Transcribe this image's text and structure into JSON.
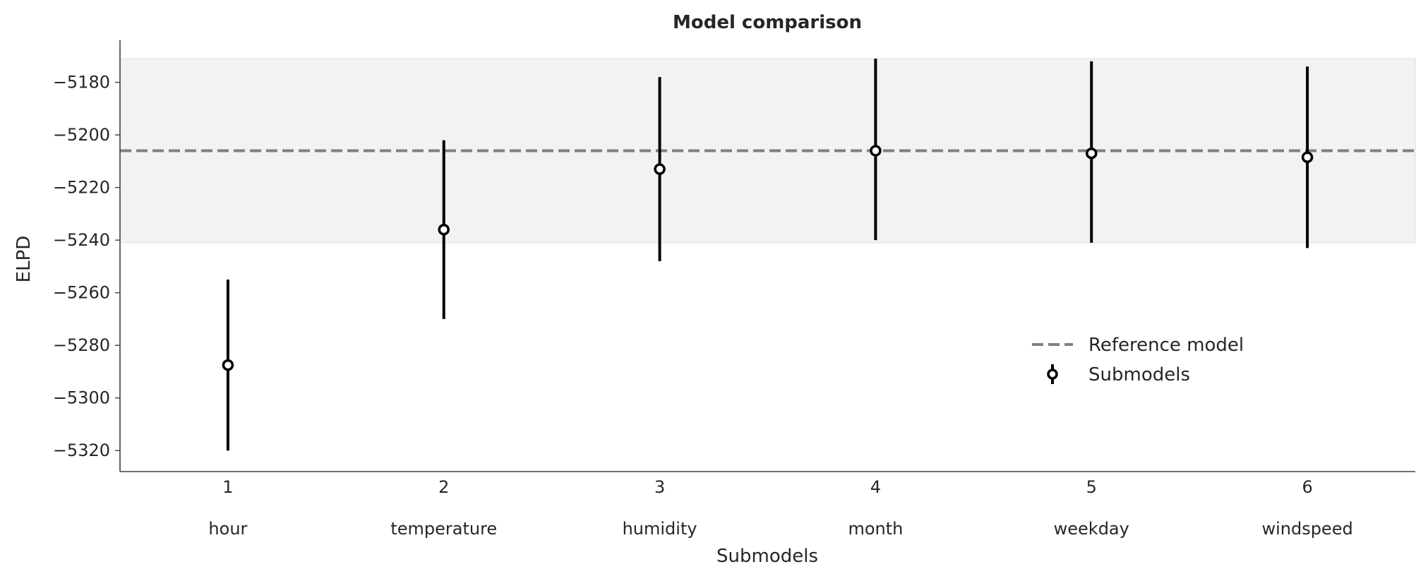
{
  "chart_data": {
    "type": "scatter",
    "title": "Model comparison",
    "xlabel": "Submodels",
    "ylabel": "ELPD",
    "x_ticks": [
      "1",
      "2",
      "3",
      "4",
      "5",
      "6"
    ],
    "x_secondary_labels": [
      "hour",
      "temperature",
      "humidity",
      "month",
      "weekday",
      "windspeed"
    ],
    "y_ticks": [
      -5180,
      -5200,
      -5220,
      -5240,
      -5260,
      -5280,
      -5300,
      -5320
    ],
    "ylim": [
      -5328,
      -5164
    ],
    "xlim": [
      0.5,
      6.5
    ],
    "grid": false,
    "legend_position": "center-right",
    "reference": {
      "name": "Reference model",
      "value": -5206,
      "band": [
        -5241,
        -5171
      ],
      "color": "#808080",
      "band_color": "#f2f2f2"
    },
    "series": [
      {
        "name": "Submodels",
        "color": "#000000",
        "x": [
          1,
          2,
          3,
          4,
          5,
          6
        ],
        "y": [
          -5287.5,
          -5236,
          -5213,
          -5206,
          -5207,
          -5208.5
        ],
        "lower": [
          -5320,
          -5270,
          -5248,
          -5240,
          -5241,
          -5243
        ],
        "upper": [
          -5255,
          -5202,
          -5178,
          -5171,
          -5172,
          -5174
        ]
      }
    ]
  }
}
